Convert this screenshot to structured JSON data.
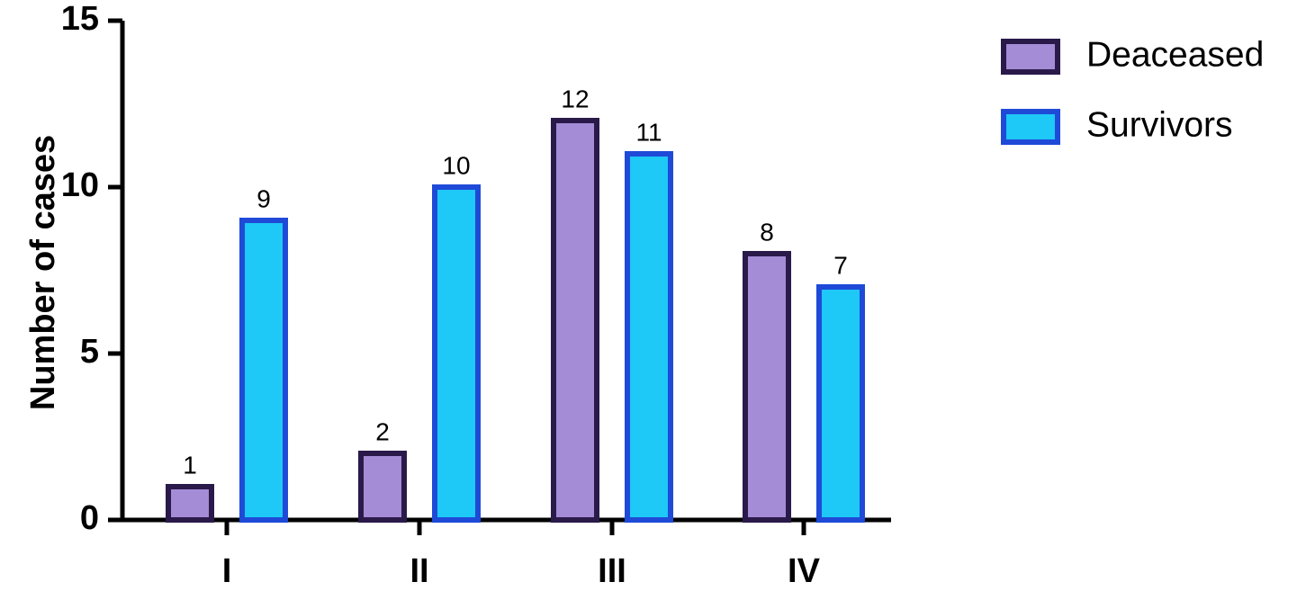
{
  "chart_data": {
    "type": "bar",
    "categories": [
      "I",
      "II",
      "III",
      "IV"
    ],
    "series": [
      {
        "name": "Deaceased",
        "values": [
          1,
          2,
          12,
          8
        ],
        "fill": "#a58cd6",
        "stroke": "#2a1a4a"
      },
      {
        "name": "Survivors",
        "values": [
          9,
          10,
          11,
          7
        ],
        "fill": "#1ec8f7",
        "stroke": "#1f4ad8"
      }
    ],
    "title": "",
    "xlabel": "",
    "ylabel": "Number of cases",
    "ylim": [
      0,
      15
    ],
    "yticks": [
      0,
      5,
      10,
      15
    ],
    "grid": false,
    "legend": "top-right"
  }
}
